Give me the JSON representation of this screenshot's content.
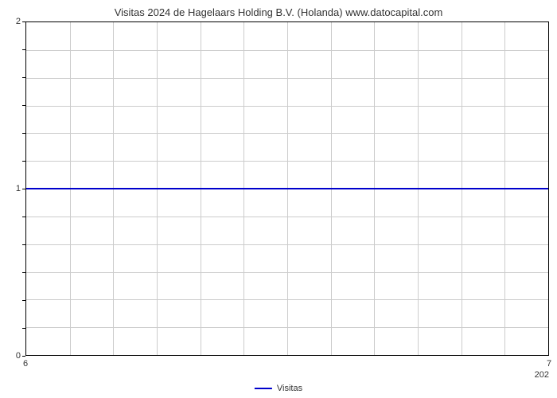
{
  "chart": {
    "type": "line",
    "title": "Visitas 2024 de Hagelaars Holding B.V. (Holanda) www.datocapital.com",
    "title_fontsize": 13,
    "title_color": "#333333",
    "background_color": "#ffffff",
    "plot_border_color": "#000000",
    "grid_color": "#cccccc",
    "x": {
      "min": 6,
      "max": 7,
      "ticks": [
        6,
        7
      ],
      "year_label": "202",
      "grid_count": 12
    },
    "y": {
      "min": 0,
      "max": 2,
      "ticks": [
        0,
        1,
        2
      ],
      "grid_count": 12
    },
    "series": [
      {
        "name": "Visitas",
        "color": "#0000cc",
        "line_width": 2,
        "value": 1
      }
    ],
    "legend": {
      "label": "Visitas",
      "swatch_color": "#0000cc"
    }
  }
}
